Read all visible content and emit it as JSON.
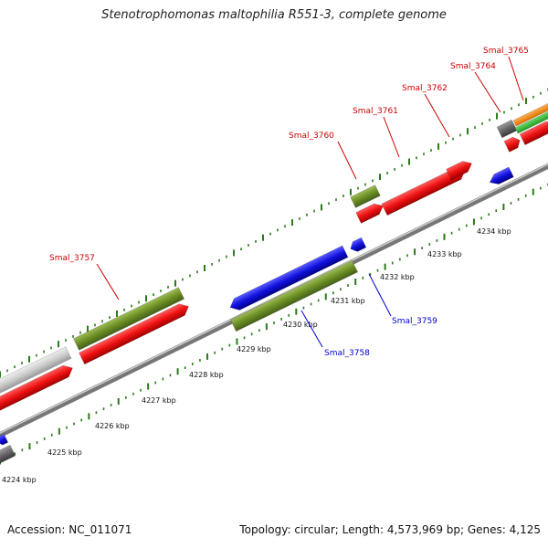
{
  "title": "Stenotrophomonas maltophilia R551-3, complete genome",
  "footer": {
    "accession": "Accession: NC_011071",
    "summary": "Topology: circular; Length: 4,573,969 bp; Genes: 4,125"
  },
  "colors": {
    "forward_strand": "#ee1111",
    "reverse_strand": "#1111dd",
    "olive_feature": "#6b8e23",
    "grey_feature": "#cccccc",
    "dark_grey_feature": "#666666",
    "orange_feature": "#ff8c00",
    "green_feature": "#33bb33",
    "tick": "#2a7a1a",
    "forward_label": "#cc0000",
    "reverse_label": "#0000cc",
    "backbone": "#888888"
  },
  "scale_labels": [
    "4224 kbp",
    "4225 kbp",
    "4226 kbp",
    "4227 kbp",
    "4228 kbp",
    "4229 kbp",
    "4230 kbp",
    "4231 kbp",
    "4232 kbp",
    "4233 kbp",
    "4234 kbp"
  ],
  "gene_labels": {
    "forward": [
      "Smal_3757",
      "Smal_3760",
      "Smal_3761",
      "Smal_3762",
      "Smal_3764",
      "Smal_3765"
    ],
    "reverse": [
      "Smal_3758",
      "Smal_3759"
    ]
  }
}
